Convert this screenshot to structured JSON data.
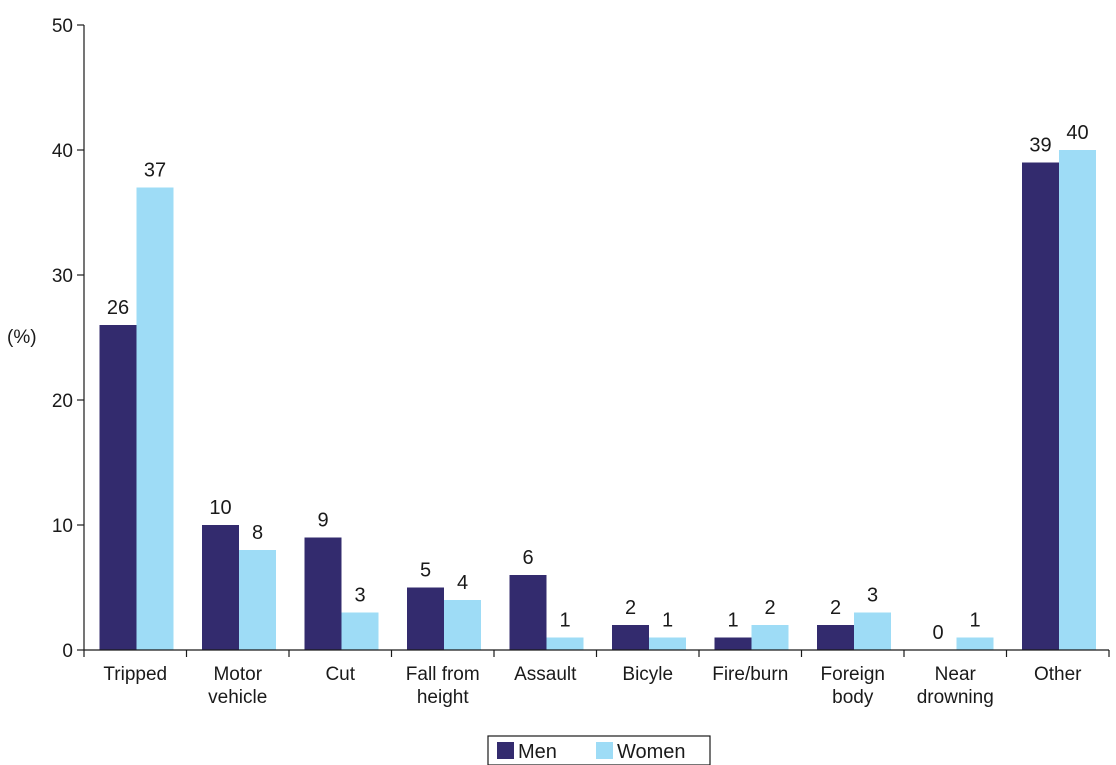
{
  "chart_data": {
    "type": "bar",
    "categories": [
      [
        "Tripped"
      ],
      [
        "Motor",
        "vehicle"
      ],
      [
        "Cut"
      ],
      [
        "Fall from",
        "height"
      ],
      [
        "Assault"
      ],
      [
        "Bicyle"
      ],
      [
        "Fire/burn"
      ],
      [
        "Foreign",
        "body"
      ],
      [
        "Near",
        "drowning"
      ],
      [
        "Other"
      ]
    ],
    "series": [
      {
        "name": "Men",
        "color": "#332b6e",
        "values": [
          26,
          10,
          9,
          5,
          6,
          2,
          1,
          2,
          0,
          39
        ]
      },
      {
        "name": "Women",
        "color": "#9edcf6",
        "values": [
          37,
          8,
          3,
          4,
          1,
          1,
          2,
          3,
          1,
          40
        ]
      }
    ],
    "ylabel": "(%)",
    "ylim": [
      0,
      50
    ],
    "yticks": [
      0,
      10,
      20,
      30,
      40,
      50
    ],
    "grid": false,
    "legend_position": "bottom-center"
  }
}
